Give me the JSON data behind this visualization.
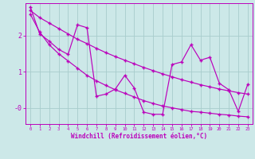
{
  "xlabel": "Windchill (Refroidissement éolien,°C)",
  "x_hours": [
    0,
    1,
    2,
    3,
    4,
    5,
    6,
    7,
    8,
    9,
    10,
    11,
    12,
    13,
    14,
    15,
    16,
    17,
    18,
    19,
    20,
    21,
    22,
    23
  ],
  "line1": [
    2.6,
    2.1,
    1.75,
    1.5,
    1.3,
    1.1,
    0.9,
    0.75,
    0.62,
    0.5,
    0.4,
    0.3,
    0.2,
    0.12,
    0.05,
    0.0,
    -0.05,
    -0.1,
    -0.12,
    -0.15,
    -0.18,
    -0.2,
    -0.23,
    -0.25
  ],
  "line2": [
    2.7,
    2.5,
    2.35,
    2.2,
    2.05,
    1.9,
    1.78,
    1.65,
    1.53,
    1.42,
    1.32,
    1.22,
    1.12,
    1.03,
    0.94,
    0.86,
    0.78,
    0.71,
    0.64,
    0.58,
    0.52,
    0.47,
    0.42,
    0.38
  ],
  "line3": [
    2.8,
    2.05,
    1.85,
    1.62,
    1.48,
    2.3,
    2.22,
    0.32,
    0.38,
    0.52,
    0.9,
    0.55,
    -0.12,
    -0.18,
    -0.18,
    1.2,
    1.27,
    1.75,
    1.32,
    1.4,
    0.68,
    0.5,
    -0.1,
    0.65
  ],
  "line_color": "#bb00bb",
  "bg_color": "#cce8e8",
  "grid_color": "#a8cccc",
  "ylim": [
    -0.45,
    2.9
  ],
  "xlim": [
    -0.5,
    23.5
  ],
  "yticks": [
    0,
    1,
    2
  ],
  "ytick_labels": [
    "-0",
    "1",
    "2"
  ]
}
